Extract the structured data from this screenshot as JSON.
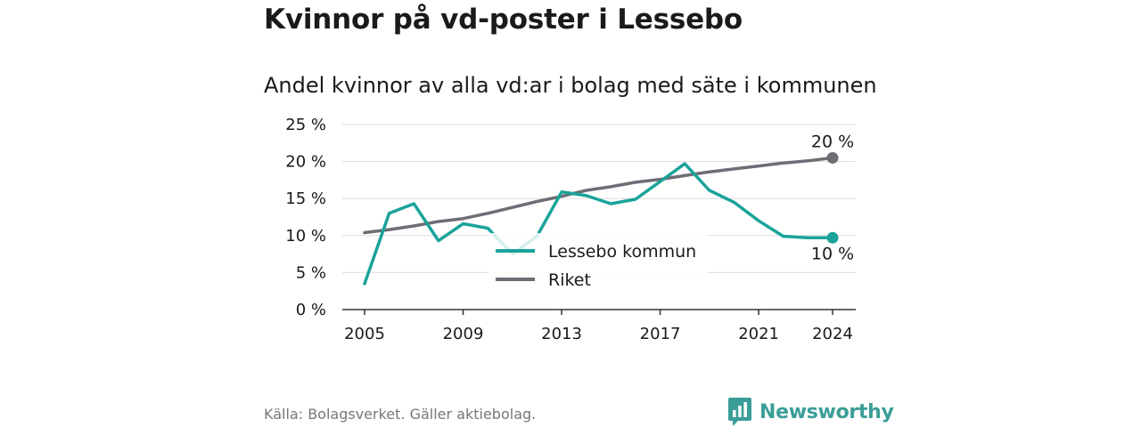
{
  "title": "Kvinnor på vd-poster i Lessebo",
  "subtitle": "Andel kvinnor av alla vd:ar i bolag med säte i kommunen",
  "source": "Källa: Bolagsverket. Gäller aktiebolag.",
  "brand": "Newsworthy",
  "colors": {
    "lessebo": "#1aa39a",
    "riket": "#6e6d75",
    "grid": "#dddddd",
    "axis": "#333333"
  },
  "chart_data": {
    "type": "line",
    "xlim": [
      2005,
      2024
    ],
    "ylim": [
      0,
      25
    ],
    "x_ticks": [
      2005,
      2009,
      2013,
      2017,
      2021,
      2024
    ],
    "y_ticks": [
      0,
      5,
      10,
      15,
      20,
      25
    ],
    "y_tick_labels": [
      "0 %",
      "5 %",
      "10 %",
      "15 %",
      "20 %",
      "25 %"
    ],
    "grid": true,
    "legend_position": "center",
    "series": [
      {
        "name": "Lessebo kommun",
        "color": "#1aa39a",
        "end_label": "10 %",
        "x": [
          2005,
          2006,
          2007,
          2008,
          2009,
          2010,
          2011,
          2012,
          2013,
          2014,
          2015,
          2016,
          2017,
          2018,
          2019,
          2020,
          2021,
          2022,
          2023,
          2024
        ],
        "values": [
          3.5,
          13.0,
          14.3,
          9.3,
          11.6,
          11.0,
          7.5,
          9.9,
          15.9,
          15.4,
          14.3,
          14.9,
          17.3,
          19.7,
          16.1,
          14.5,
          12.0,
          9.9,
          9.7,
          9.7
        ]
      },
      {
        "name": "Riket",
        "color": "#6e6d75",
        "end_label": "20 %",
        "x": [
          2005,
          2006,
          2007,
          2008,
          2009,
          2010,
          2011,
          2012,
          2013,
          2014,
          2015,
          2016,
          2017,
          2018,
          2019,
          2020,
          2021,
          2022,
          2023,
          2024
        ],
        "values": [
          10.4,
          10.8,
          11.3,
          11.9,
          12.3,
          13.0,
          13.8,
          14.6,
          15.3,
          16.1,
          16.6,
          17.2,
          17.6,
          18.1,
          18.6,
          19.0,
          19.4,
          19.8,
          20.1,
          20.5
        ]
      }
    ]
  }
}
